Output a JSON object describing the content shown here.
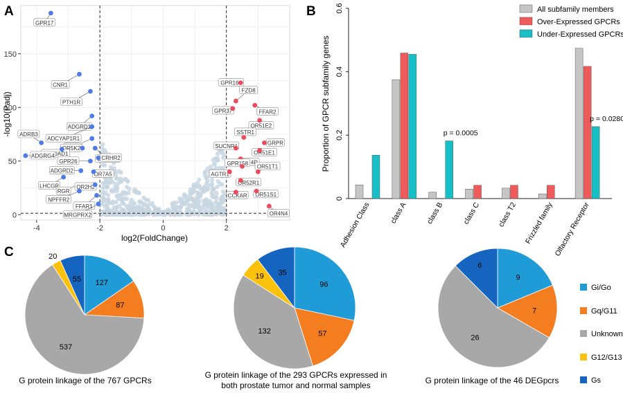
{
  "panels": {
    "a": "A",
    "b": "B",
    "c": "C"
  },
  "chart_data": [
    {
      "type": "scatter",
      "id": "volcano",
      "xlabel": "log2(FoldChange)",
      "ylabel": "-log10(Padj)",
      "xlim": [
        -4.5,
        4
      ],
      "ylim": [
        -5,
        195
      ],
      "xticks": [
        -4,
        -2,
        0,
        2
      ],
      "yticks": [
        0,
        50,
        100,
        150
      ],
      "thresholds": {
        "x": [
          -2,
          2
        ],
        "y": 1.3
      },
      "colors": {
        "down": "#4f7be8",
        "up": "#ee4a5e",
        "ns": "#c7d6e1"
      },
      "labeled": [
        {
          "label": "GPR17",
          "x": -3.55,
          "y": 188,
          "group": "down"
        },
        {
          "label": "CNR1",
          "x": -2.65,
          "y": 131,
          "group": "down"
        },
        {
          "label": "PTH1R",
          "x": -2.3,
          "y": 115,
          "group": "down"
        },
        {
          "label": "ADGRD1",
          "x": -2.25,
          "y": 92,
          "group": "down"
        },
        {
          "label": "ADCYAP1R1",
          "x": -2.25,
          "y": 82,
          "group": "down"
        },
        {
          "label": "GIPR",
          "x": -2.25,
          "y": 71,
          "group": "down"
        },
        {
          "label": "OR52N4",
          "x": -2.15,
          "y": 62,
          "group": "down"
        },
        {
          "label": "OR5K2",
          "x": -2.55,
          "y": 62,
          "group": "down"
        },
        {
          "label": "ADRB3",
          "x": -3.85,
          "y": 67,
          "group": "down"
        },
        {
          "label": "OR10AD1",
          "x": -3.2,
          "y": 61,
          "group": "down"
        },
        {
          "label": "GPR26",
          "x": -2.3,
          "y": 50,
          "group": "down"
        },
        {
          "label": "CRHR2",
          "x": -2.05,
          "y": 53,
          "group": "down"
        },
        {
          "label": "ADGRG4",
          "x": -4.35,
          "y": 55,
          "group": "down"
        },
        {
          "label": "ADGRD2",
          "x": -2.6,
          "y": 41,
          "group": "down"
        },
        {
          "label": "OR7A5",
          "x": -2.2,
          "y": 40,
          "group": "down"
        },
        {
          "label": "LHCGR",
          "x": -3.15,
          "y": 35,
          "group": "down"
        },
        {
          "label": "RGR",
          "x": -2.7,
          "y": 28,
          "group": "down"
        },
        {
          "label": "OR2H2",
          "x": -2.15,
          "y": 28,
          "group": "down"
        },
        {
          "label": "NPFFR2",
          "x": -2.65,
          "y": 22,
          "group": "down"
        },
        {
          "label": "FFAR1",
          "x": -2.1,
          "y": 18,
          "group": "down"
        },
        {
          "label": "MRGPRX2",
          "x": -2.05,
          "y": 10,
          "group": "down"
        },
        {
          "label": "GPR160",
          "x": 2.45,
          "y": 123,
          "group": "up"
        },
        {
          "label": "FZD8",
          "x": 2.3,
          "y": 106,
          "group": "up"
        },
        {
          "label": "FFAR2",
          "x": 2.9,
          "y": 102,
          "group": "up"
        },
        {
          "label": "GPR37",
          "x": 2.2,
          "y": 99,
          "group": "up"
        },
        {
          "label": "OR51E2",
          "x": 3.05,
          "y": 88,
          "group": "up"
        },
        {
          "label": "SSTR1",
          "x": 2.55,
          "y": 72,
          "group": "up"
        },
        {
          "label": "GRPR",
          "x": 3.2,
          "y": 67,
          "group": "up"
        },
        {
          "label": "SUCNR1",
          "x": 2.3,
          "y": 62,
          "group": "up"
        },
        {
          "label": "OR51E1",
          "x": 3.05,
          "y": 60,
          "group": "up"
        },
        {
          "label": "NPY4R",
          "x": 2.45,
          "y": 52,
          "group": "up"
        },
        {
          "label": "GPR158",
          "x": 2.5,
          "y": 45,
          "group": "up"
        },
        {
          "label": "AGTR1",
          "x": 2.1,
          "y": 40,
          "group": "up"
        },
        {
          "label": "OR51T1",
          "x": 3.0,
          "y": 40,
          "group": "up"
        },
        {
          "label": "OR52R1",
          "x": 2.45,
          "y": 32,
          "group": "up"
        },
        {
          "label": "CCKAR",
          "x": 2.3,
          "y": 21,
          "group": "up"
        },
        {
          "label": "OR51S1",
          "x": 2.95,
          "y": 22,
          "group": "up"
        },
        {
          "label": "OR4N4",
          "x": 3.35,
          "y": 8,
          "group": "up"
        }
      ]
    },
    {
      "type": "bar",
      "id": "proportion",
      "ylabel": "Proportion of GPCR subfamily genes",
      "ylim": [
        0,
        0.6
      ],
      "yticks": [
        0,
        0.2,
        0.4,
        0.6
      ],
      "categories": [
        "Adhesion Class",
        "class A",
        "class B",
        "class C",
        "class T2",
        "Frizzled family",
        "Olfactory Receptor"
      ],
      "series": [
        {
          "name": "All subfamily members",
          "color": "#c6c6c6",
          "values": [
            0.043,
            0.375,
            0.02,
            0.03,
            0.033,
            0.015,
            0.474
          ]
        },
        {
          "name": "Over-Expressed GPCRs",
          "color": "#ef5a5a",
          "values": [
            0,
            0.459,
            0,
            0.042,
            0.042,
            0.042,
            0.417
          ]
        },
        {
          "name": "Under-Expressed GPCRs",
          "color": "#17bfc7",
          "values": [
            0.137,
            0.455,
            0.182,
            0,
            0,
            0,
            0.227
          ]
        }
      ],
      "annotations": [
        {
          "category": "class B",
          "text": "p = 0.0005"
        },
        {
          "category": "Olfactory Receptor",
          "text": "p = 0.0280"
        }
      ],
      "legend_position": "top-right"
    },
    {
      "type": "pie",
      "id": "pie-767",
      "caption": "G protein linkage of the 767 GPCRs",
      "labels": [
        "Gi/Go",
        "Gq/G11",
        "Unknown",
        "G12/G13",
        "Gs"
      ],
      "values": [
        127,
        87,
        537,
        20,
        55
      ]
    },
    {
      "type": "pie",
      "id": "pie-293",
      "caption": "G protein linkage of the 293 GPCRs expressed in both prostate tumor and normal samples",
      "labels": [
        "Gi/Go",
        "Gq/G11",
        "Unknown",
        "G12/G13",
        "Gs"
      ],
      "values": [
        96,
        57,
        132,
        19,
        35
      ]
    },
    {
      "type": "pie",
      "id": "pie-46",
      "caption": "G protein linkage of the 46 DEGpcrs",
      "labels": [
        "Gi/Go",
        "Gq/G11",
        "Unknown",
        "G12/G13",
        "Gs"
      ],
      "values": [
        9,
        7,
        26,
        0,
        6
      ]
    }
  ],
  "pie_legend": [
    {
      "label": "Gi/Go",
      "color": "#1f9bd7"
    },
    {
      "label": "Gq/G11",
      "color": "#f47d20"
    },
    {
      "label": "Unknown",
      "color": "#a8a8a8"
    },
    {
      "label": "G12/G13",
      "color": "#fbc10c"
    },
    {
      "label": "Gs",
      "color": "#1565c0"
    }
  ],
  "captions": {
    "pie1": "G protein linkage of the 767 GPCRs",
    "pie2_line1": "G protein linkage of the 293 GPCRs expressed in",
    "pie2_line2": "both prostate tumor and normal samples",
    "pie3": "G protein linkage of the 46 DEGpcrs"
  }
}
